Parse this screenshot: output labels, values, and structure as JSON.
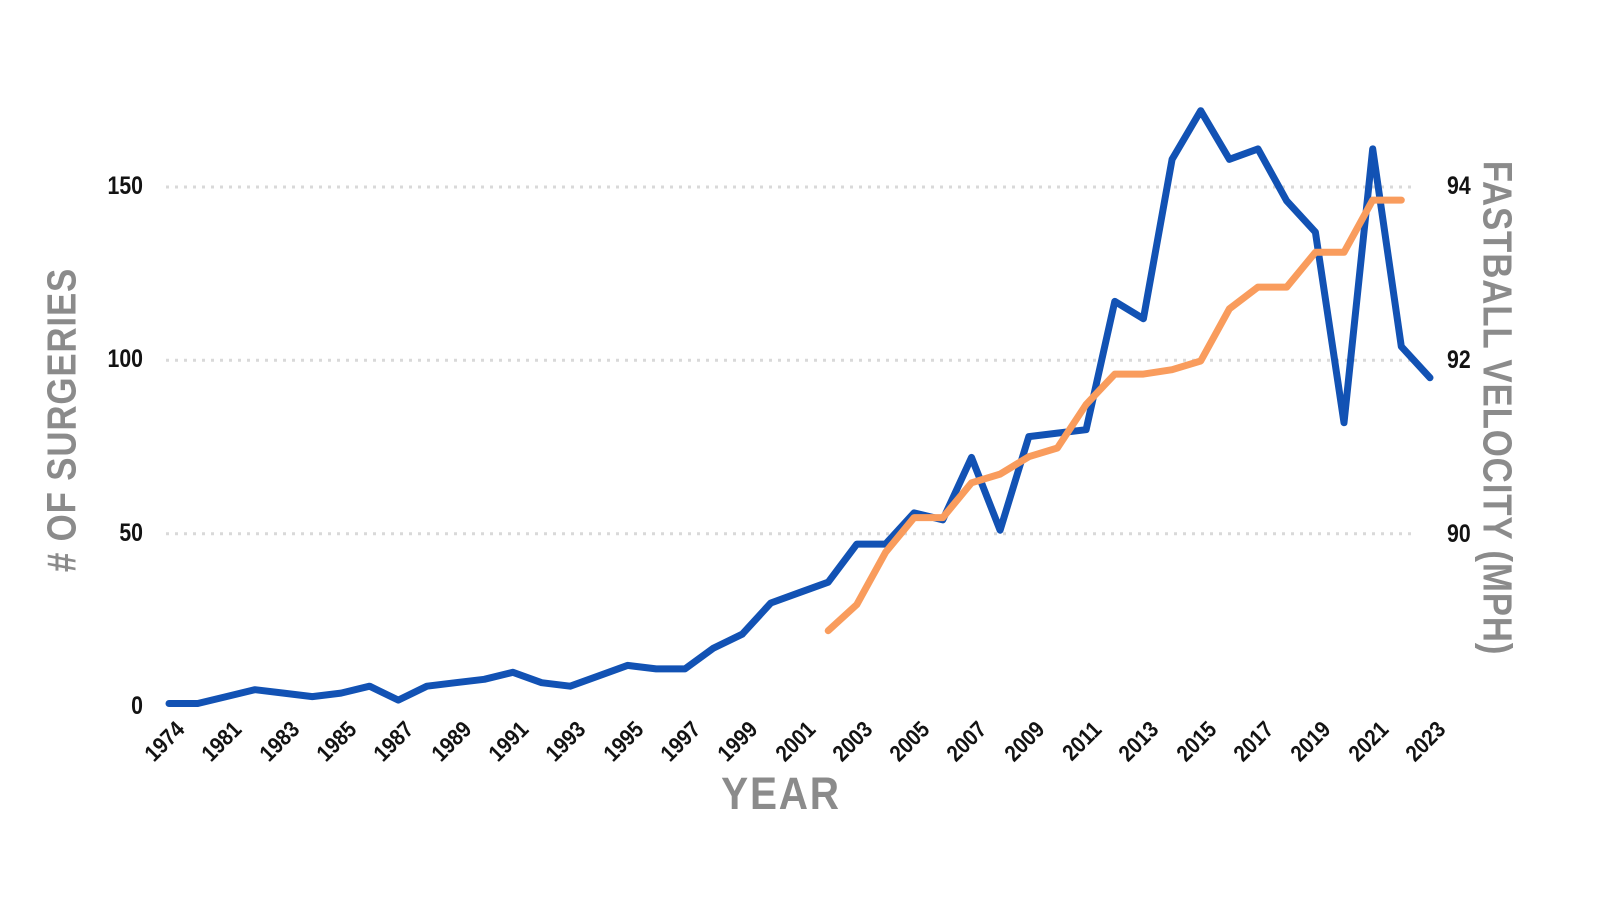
{
  "chart_data": {
    "type": "line",
    "title": "",
    "categories": [
      "1974",
      "1980",
      "1981",
      "1982",
      "1983",
      "1984",
      "1985",
      "1986",
      "1987",
      "1988",
      "1989",
      "1990",
      "1991",
      "1992",
      "1993",
      "1994",
      "1995",
      "1996",
      "1997",
      "1998",
      "1999",
      "2000",
      "2001",
      "2002",
      "2003",
      "2004",
      "2005",
      "2006",
      "2007",
      "2008",
      "2009",
      "2010",
      "2011",
      "2012",
      "2013",
      "2014",
      "2015",
      "2016",
      "2017",
      "2018",
      "2019",
      "2020",
      "2021",
      "2022",
      "2023"
    ],
    "series": [
      {
        "name": "# of Surgeries",
        "axis": "left",
        "color": "#1252b4",
        "values": [
          1,
          1,
          3,
          5,
          4,
          3,
          4,
          6,
          2,
          6,
          7,
          8,
          10,
          7,
          6,
          9,
          12,
          11,
          11,
          17,
          21,
          30,
          33,
          36,
          47,
          47,
          56,
          54,
          72,
          51,
          78,
          79,
          80,
          117,
          112,
          158,
          172,
          158,
          161,
          146,
          137,
          82,
          161,
          104,
          95
        ]
      },
      {
        "name": "Fastball Velocity (mph)",
        "axis": "right",
        "color": "#f99c5d",
        "values": [
          null,
          null,
          null,
          null,
          null,
          null,
          null,
          null,
          null,
          null,
          null,
          null,
          null,
          null,
          null,
          null,
          null,
          null,
          null,
          null,
          null,
          null,
          null,
          88.9,
          89.2,
          89.8,
          90.2,
          90.2,
          90.6,
          90.7,
          90.9,
          91.0,
          91.5,
          91.85,
          91.85,
          91.9,
          92.0,
          92.6,
          92.85,
          92.85,
          93.25,
          93.25,
          93.85,
          93.85,
          null
        ]
      }
    ],
    "left_axis": {
      "title": "# OF SURGERIES",
      "ticks": [
        0,
        50,
        100,
        150
      ],
      "range": [
        0,
        175
      ]
    },
    "right_axis": {
      "title": "FASTBALL VELOCITY (MPH)",
      "ticks": [
        90,
        92,
        94
      ],
      "range": [
        88,
        94.7
      ]
    },
    "x_axis": {
      "title": "YEAR",
      "label_every": 2,
      "shown_tick_labels": [
        "1974",
        "1981",
        "1983",
        "1985",
        "1987",
        "1989",
        "1991",
        "1993",
        "1995",
        "1997",
        "1999",
        "2001",
        "2003",
        "2005",
        "2007",
        "2009",
        "2011",
        "2013",
        "2015",
        "2017",
        "2019",
        "2021",
        "2023"
      ]
    },
    "grid": "horizontal-dotted",
    "legend_position": "none"
  },
  "colors": {
    "surgeries_line": "#1252b4",
    "velocity_line": "#f99c5d",
    "grid": "#d9d9d9",
    "axis_title": "#8b8b8b",
    "tick_label": "#131313",
    "background": "#ffffff"
  }
}
